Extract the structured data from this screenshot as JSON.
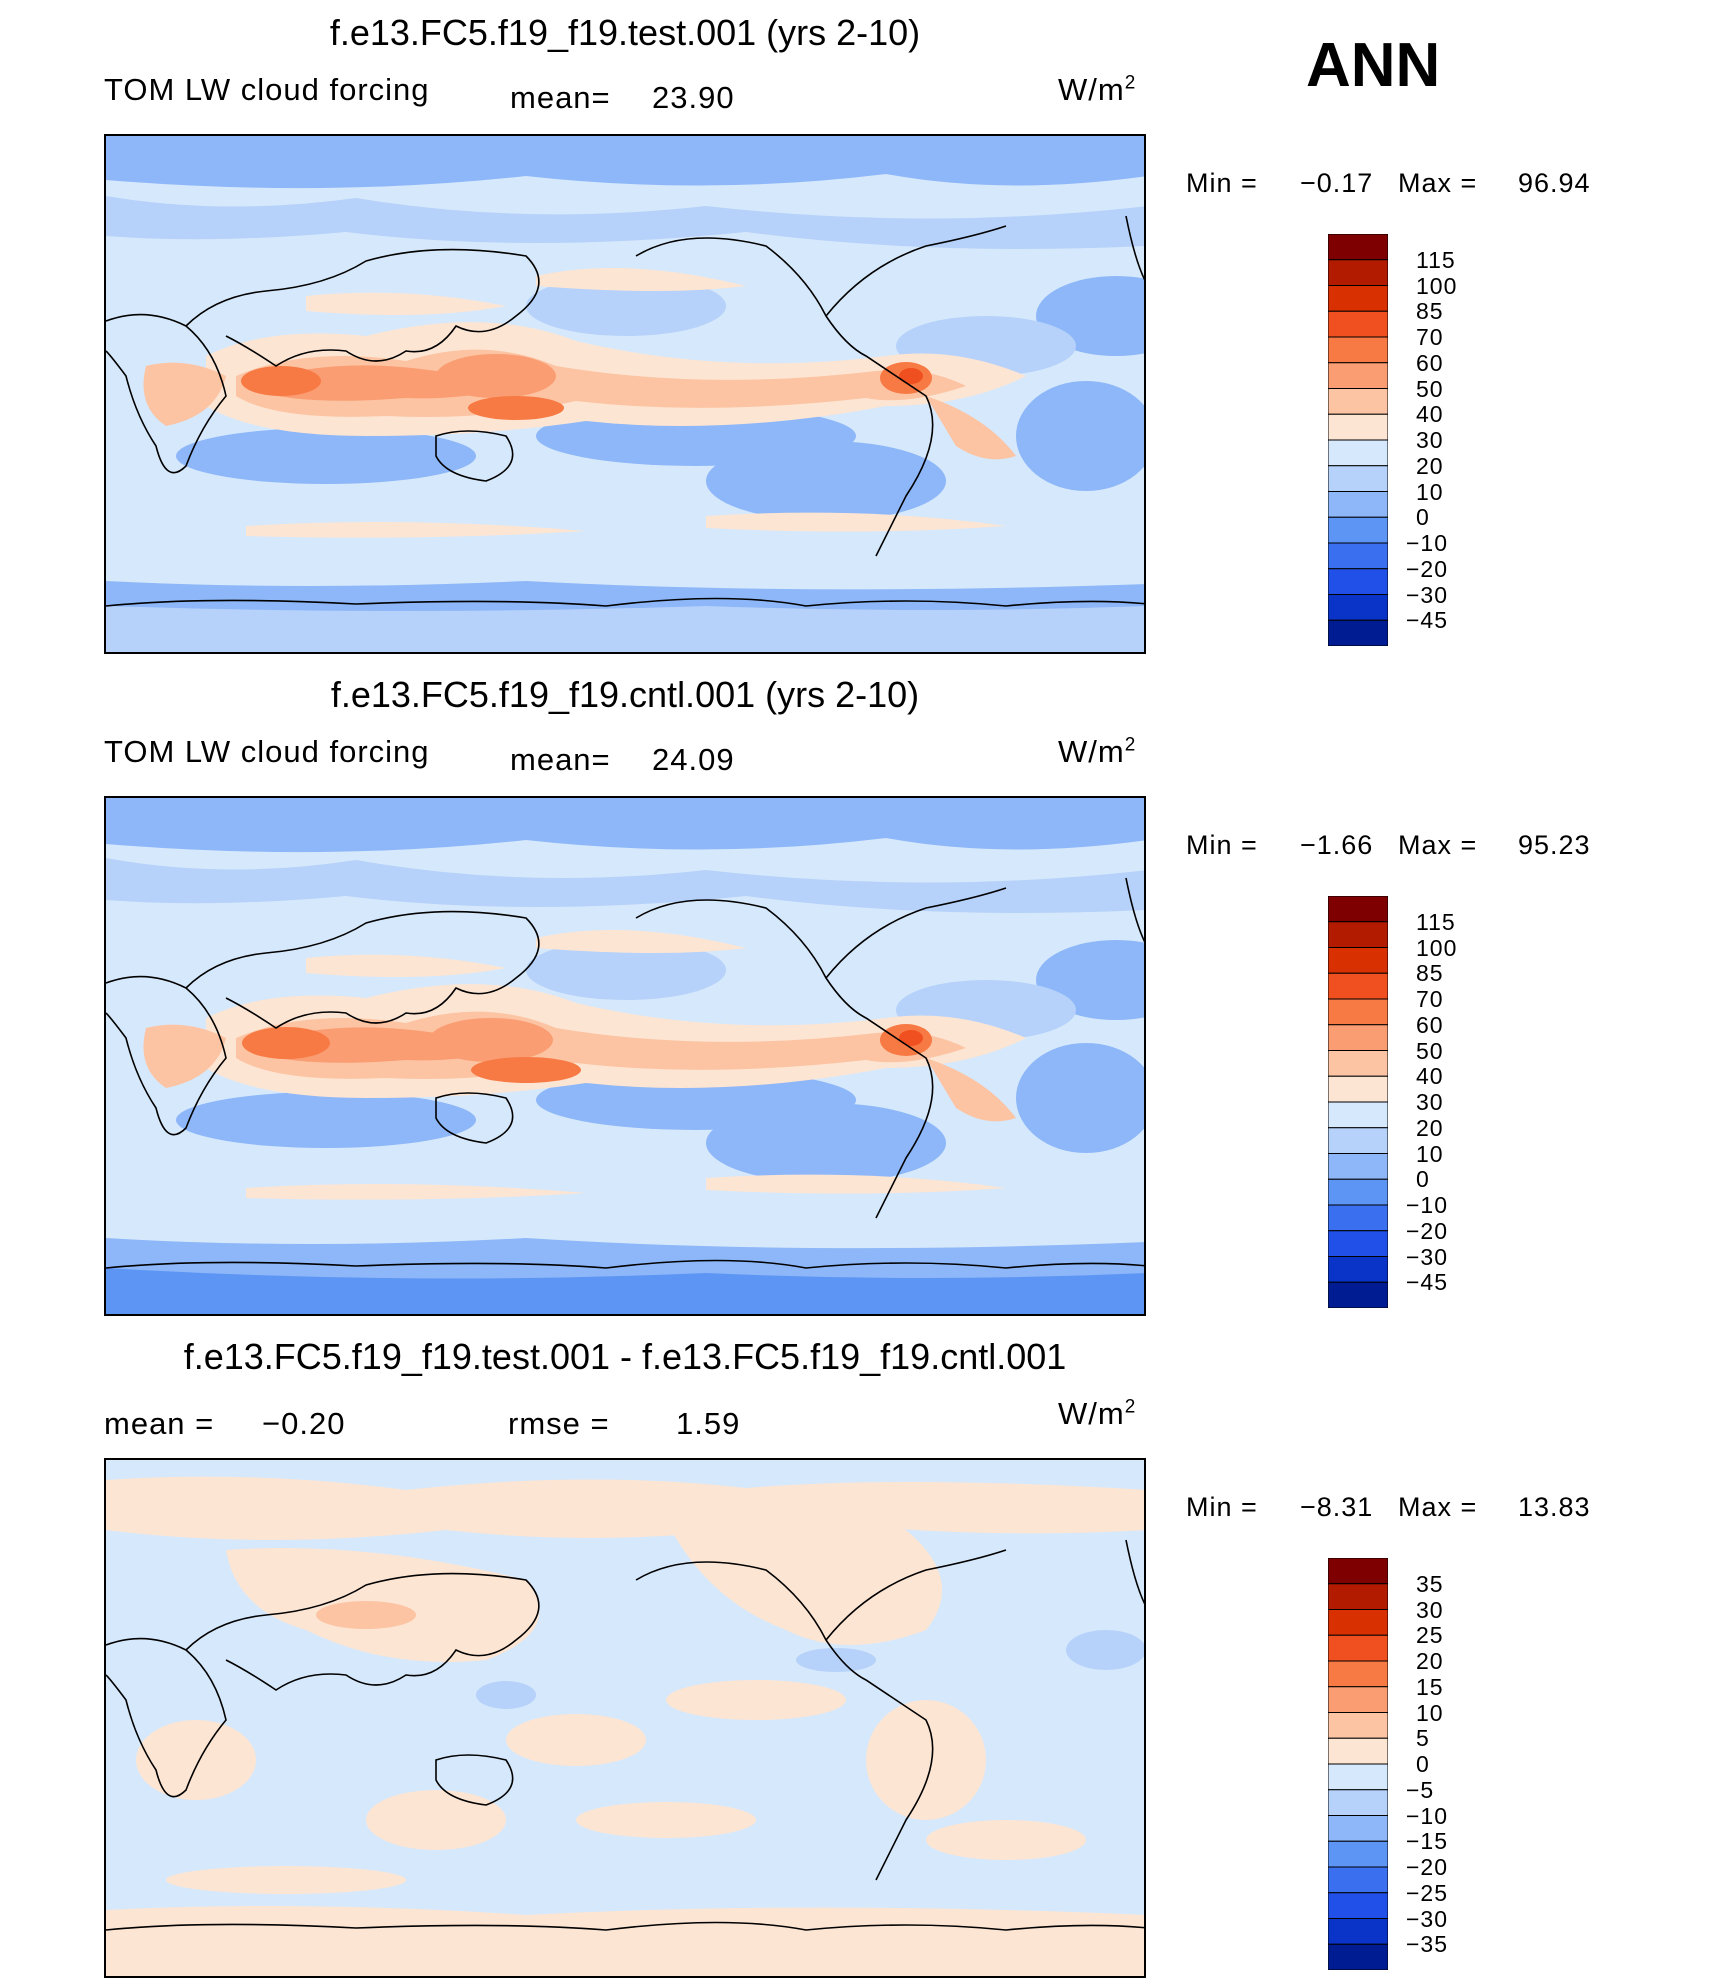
{
  "season": "ANN",
  "units_label": "W/m",
  "units_exp": "2",
  "panels": [
    {
      "title": "f.e13.FC5.f19_f19.test.001 (yrs 2-10)",
      "left_label": "TOM LW cloud forcing",
      "mid_label": "mean=",
      "mid_value": "23.90",
      "min_label": "Min =",
      "min_value": "−0.17",
      "max_label": "Max =",
      "max_value": "96.94",
      "colorbar": {
        "levels": [
          "115",
          "100",
          "85",
          "70",
          "60",
          "50",
          "40",
          "30",
          "20",
          "10",
          "0",
          "−10",
          "−20",
          "−30",
          "−45"
        ],
        "colors": [
          "#7f0000",
          "#b31b00",
          "#d83000",
          "#f05020",
          "#f77a45",
          "#fa9d72",
          "#fcc4a3",
          "#fde5d3",
          "#d6e8fb",
          "#b6d2fa",
          "#8db7f8",
          "#5c95f4",
          "#3a6ff0",
          "#2050e8",
          "#0a34c8",
          "#001c93"
        ]
      },
      "chart_data": {
        "type": "heatmap",
        "title": "f.e13.FC5.f19_f19.test.001 (yrs 2-10)",
        "variable": "TOM LW cloud forcing",
        "units": "W/m2",
        "mean": 23.9,
        "min": -0.17,
        "max": 96.94
      }
    },
    {
      "title": "f.e13.FC5.f19_f19.cntl.001 (yrs 2-10)",
      "left_label": "TOM LW cloud forcing",
      "mid_label": "mean=",
      "mid_value": "24.09",
      "min_label": "Min =",
      "min_value": "−1.66",
      "max_label": "Max =",
      "max_value": "95.23",
      "colorbar": {
        "levels": [
          "115",
          "100",
          "85",
          "70",
          "60",
          "50",
          "40",
          "30",
          "20",
          "10",
          "0",
          "−10",
          "−20",
          "−30",
          "−45"
        ],
        "colors": [
          "#7f0000",
          "#b31b00",
          "#d83000",
          "#f05020",
          "#f77a45",
          "#fa9d72",
          "#fcc4a3",
          "#fde5d3",
          "#d6e8fb",
          "#b6d2fa",
          "#8db7f8",
          "#5c95f4",
          "#3a6ff0",
          "#2050e8",
          "#0a34c8",
          "#001c93"
        ]
      },
      "chart_data": {
        "type": "heatmap",
        "title": "f.e13.FC5.f19_f19.cntl.001 (yrs 2-10)",
        "variable": "TOM LW cloud forcing",
        "units": "W/m2",
        "mean": 24.09,
        "min": -1.66,
        "max": 95.23
      }
    },
    {
      "title": "f.e13.FC5.f19_f19.test.001 - f.e13.FC5.f19_f19.cntl.001",
      "left_label": "mean =",
      "left_value": "−0.20",
      "mid_label": "rmse =",
      "mid_value": "1.59",
      "min_label": "Min =",
      "min_value": "−8.31",
      "max_label": "Max =",
      "max_value": "13.83",
      "colorbar": {
        "levels": [
          "35",
          "30",
          "25",
          "20",
          "15",
          "10",
          "5",
          "0",
          "−5",
          "−10",
          "−15",
          "−20",
          "−25",
          "−30",
          "−35"
        ],
        "colors": [
          "#7f0000",
          "#b31b00",
          "#d83000",
          "#f05020",
          "#f77a45",
          "#fa9d72",
          "#fcc4a3",
          "#fde5d3",
          "#d6e8fb",
          "#b6d2fa",
          "#8db7f8",
          "#5c95f4",
          "#3a6ff0",
          "#2050e8",
          "#0a34c8",
          "#001c93"
        ]
      },
      "chart_data": {
        "type": "heatmap",
        "title": "f.e13.FC5.f19_f19.test.001 - f.e13.FC5.f19_f19.cntl.001",
        "units": "W/m2",
        "mean": -0.2,
        "rmse": 1.59,
        "min": -8.31,
        "max": 13.83
      }
    }
  ]
}
